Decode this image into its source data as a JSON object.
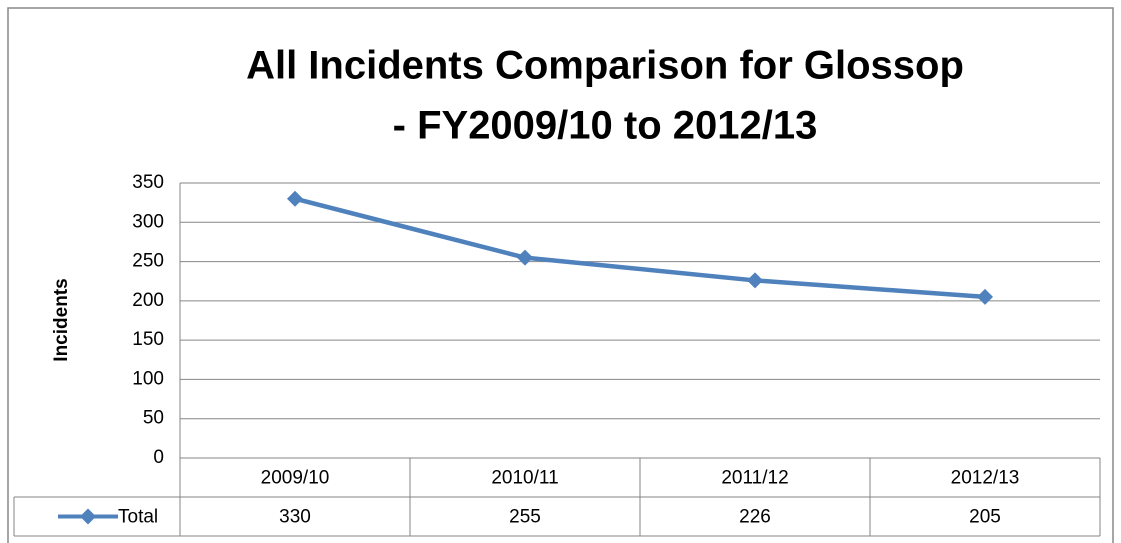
{
  "chart_data": {
    "type": "line",
    "title": [
      "All Incidents Comparison for Glossop",
      "- FY2009/10 to 2012/13"
    ],
    "y_label": "Incidents",
    "categories": [
      "2009/10",
      "2010/11",
      "2011/12",
      "2012/13"
    ],
    "series": [
      {
        "name": "Total",
        "color": "#4f81bd",
        "values": [
          330,
          255,
          226,
          205
        ]
      }
    ],
    "ylim": [
      0,
      350
    ],
    "yticks": [
      0,
      50,
      100,
      150,
      200,
      250,
      300,
      350
    ],
    "grid": true,
    "data_table": true
  }
}
